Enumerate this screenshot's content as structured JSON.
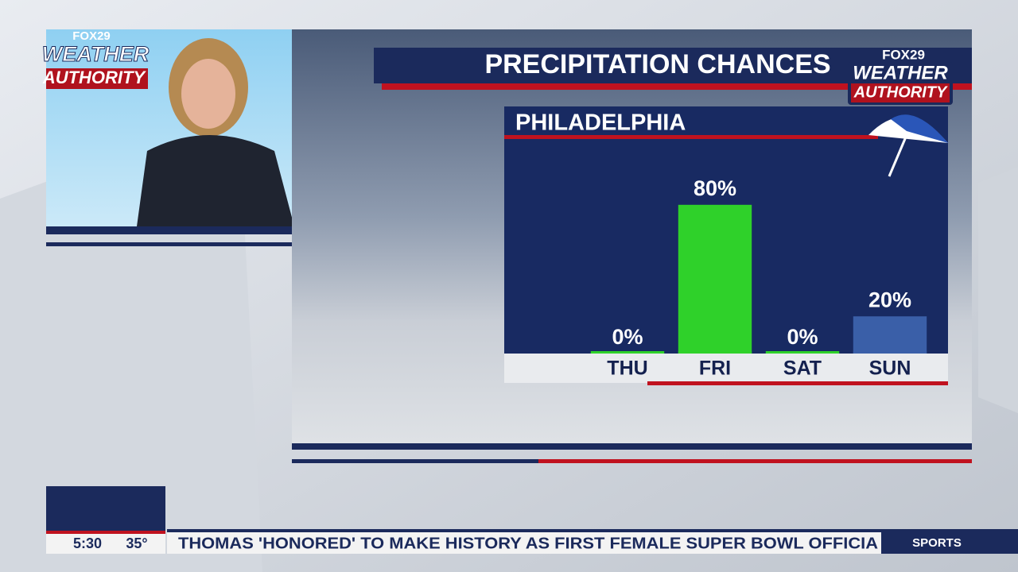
{
  "chart_data": {
    "type": "bar",
    "title": "PRECIPITATION CHANCES",
    "subtitle": "PHILADELPHIA",
    "categories": [
      "THU",
      "FRI",
      "SAT",
      "SUN"
    ],
    "values": [
      0,
      80,
      0,
      20
    ],
    "value_labels": [
      "0%",
      "80%",
      "0%",
      "20%"
    ],
    "colors": [
      "#2fd12a",
      "#2fd12a",
      "#2fd12a",
      "#3a5fa8"
    ],
    "ylim": [
      0,
      100
    ]
  },
  "branding": {
    "network": "FOX29",
    "line1": "WEATHER",
    "line2": "AUTHORITY"
  },
  "ticker": {
    "time": "5:30",
    "temperature": "35°",
    "headline": "THOMAS 'HONORED' TO MAKE HISTORY AS FIRST FEMALE SUPER BOWL OFFICIA",
    "section": "SPORTS"
  }
}
